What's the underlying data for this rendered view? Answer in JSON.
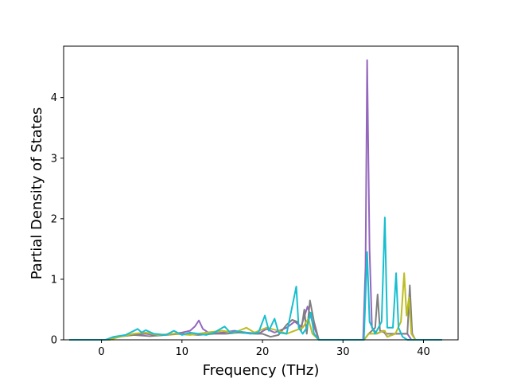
{
  "chart_data": {
    "type": "line",
    "title": "",
    "xlabel": "Frequency (THz)",
    "ylabel": "Partial Density of States",
    "xlim": [
      -4.7,
      44.3
    ],
    "ylim": [
      0,
      4.85
    ],
    "xticks": [
      0,
      10,
      20,
      30,
      40
    ],
    "yticks": [
      0,
      1,
      2,
      3,
      4
    ],
    "grid": false,
    "legend": "none",
    "series": [
      {
        "color": "#9467bd",
        "points": [
          [
            -4.0,
            0
          ],
          [
            0.5,
            0
          ],
          [
            1.2,
            0.03
          ],
          [
            2.5,
            0.06
          ],
          [
            4,
            0.08
          ],
          [
            5.5,
            0.1
          ],
          [
            7,
            0.07
          ],
          [
            8.5,
            0.09
          ],
          [
            10,
            0.12
          ],
          [
            11,
            0.15
          ],
          [
            11.6,
            0.22
          ],
          [
            12.1,
            0.32
          ],
          [
            12.6,
            0.18
          ],
          [
            13.5,
            0.1
          ],
          [
            15,
            0.12
          ],
          [
            16.5,
            0.15
          ],
          [
            18,
            0.12
          ],
          [
            19.5,
            0.1
          ],
          [
            20.5,
            0.18
          ],
          [
            21.5,
            0.12
          ],
          [
            23,
            0.2
          ],
          [
            24,
            0.3
          ],
          [
            24.8,
            0.22
          ],
          [
            25.6,
            0.55
          ],
          [
            26.2,
            0.3
          ],
          [
            27,
            0
          ],
          [
            32.5,
            0
          ],
          [
            32.8,
            1.2
          ],
          [
            33.0,
            4.62
          ],
          [
            33.3,
            1.5
          ],
          [
            33.6,
            0.2
          ],
          [
            34.2,
            0.1
          ],
          [
            35.0,
            0.15
          ],
          [
            35.5,
            0.05
          ],
          [
            36.5,
            0.1
          ],
          [
            38,
            0.1
          ],
          [
            38.5,
            0
          ],
          [
            42.3,
            0
          ]
        ]
      },
      {
        "color": "#7f7f7f",
        "points": [
          [
            -4.0,
            0
          ],
          [
            1,
            0
          ],
          [
            2,
            0.05
          ],
          [
            4,
            0.08
          ],
          [
            6,
            0.06
          ],
          [
            8,
            0.08
          ],
          [
            10,
            0.1
          ],
          [
            12,
            0.08
          ],
          [
            14,
            0.1
          ],
          [
            15.5,
            0.1
          ],
          [
            17,
            0.12
          ],
          [
            19,
            0.1
          ],
          [
            20,
            0.1
          ],
          [
            21,
            0.05
          ],
          [
            22,
            0.08
          ],
          [
            23,
            0.25
          ],
          [
            23.7,
            0.33
          ],
          [
            24.3,
            0.3
          ],
          [
            24.8,
            0.15
          ],
          [
            25.2,
            0.5
          ],
          [
            25.5,
            0.1
          ],
          [
            25.9,
            0.65
          ],
          [
            26.4,
            0.3
          ],
          [
            27,
            0
          ],
          [
            32.6,
            0
          ],
          [
            33.2,
            0.1
          ],
          [
            34,
            0.2
          ],
          [
            34.3,
            0.75
          ],
          [
            34.6,
            0.15
          ],
          [
            35.5,
            0.1
          ],
          [
            36.8,
            0.1
          ],
          [
            38.0,
            0.1
          ],
          [
            38.3,
            0.9
          ],
          [
            38.6,
            0.1
          ],
          [
            39,
            0
          ],
          [
            42.3,
            0
          ]
        ]
      },
      {
        "color": "#bcbd22",
        "points": [
          [
            -4.0,
            0
          ],
          [
            1,
            0
          ],
          [
            2,
            0.04
          ],
          [
            4,
            0.1
          ],
          [
            5.5,
            0.12
          ],
          [
            7,
            0.08
          ],
          [
            9,
            0.1
          ],
          [
            11,
            0.08
          ],
          [
            13,
            0.12
          ],
          [
            15,
            0.15
          ],
          [
            16.5,
            0.12
          ],
          [
            18,
            0.2
          ],
          [
            19,
            0.12
          ],
          [
            20.5,
            0.2
          ],
          [
            22,
            0.15
          ],
          [
            23,
            0.1
          ],
          [
            24,
            0.15
          ],
          [
            25,
            0.2
          ],
          [
            25.7,
            0.35
          ],
          [
            26.2,
            0.1
          ],
          [
            27,
            0
          ],
          [
            32.6,
            0
          ],
          [
            33.2,
            0.1
          ],
          [
            34,
            0.1
          ],
          [
            35.2,
            0.15
          ],
          [
            35.5,
            0.05
          ],
          [
            36.5,
            0.1
          ],
          [
            37.2,
            0.3
          ],
          [
            37.6,
            1.1
          ],
          [
            37.9,
            0.4
          ],
          [
            38.2,
            0.7
          ],
          [
            38.5,
            0.1
          ],
          [
            39,
            0
          ],
          [
            42.3,
            0
          ]
        ]
      },
      {
        "color": "#17becf",
        "points": [
          [
            -4.0,
            0
          ],
          [
            0.5,
            0
          ],
          [
            1.5,
            0.05
          ],
          [
            3,
            0.08
          ],
          [
            4.5,
            0.18
          ],
          [
            5,
            0.12
          ],
          [
            5.5,
            0.16
          ],
          [
            6.5,
            0.1
          ],
          [
            8,
            0.08
          ],
          [
            9,
            0.15
          ],
          [
            10,
            0.08
          ],
          [
            11,
            0.12
          ],
          [
            12,
            0.1
          ],
          [
            13,
            0.08
          ],
          [
            14,
            0.12
          ],
          [
            15.3,
            0.22
          ],
          [
            16,
            0.12
          ],
          [
            17,
            0.14
          ],
          [
            18.5,
            0.1
          ],
          [
            19.5,
            0.12
          ],
          [
            20.3,
            0.4
          ],
          [
            20.8,
            0.15
          ],
          [
            21.5,
            0.35
          ],
          [
            22,
            0.12
          ],
          [
            23,
            0.1
          ],
          [
            24.2,
            0.88
          ],
          [
            24.5,
            0.2
          ],
          [
            25,
            0.1
          ],
          [
            25.5,
            0.2
          ],
          [
            26,
            0.45
          ],
          [
            26.4,
            0.1
          ],
          [
            27,
            0
          ],
          [
            32.6,
            0
          ],
          [
            33.0,
            1.45
          ],
          [
            33.3,
            0.3
          ],
          [
            34,
            0.1
          ],
          [
            34.8,
            0.3
          ],
          [
            35.2,
            2.02
          ],
          [
            35.5,
            0.2
          ],
          [
            36.2,
            0.2
          ],
          [
            36.6,
            1.1
          ],
          [
            36.9,
            0.2
          ],
          [
            37.4,
            0.05
          ],
          [
            38,
            0
          ],
          [
            42.3,
            0
          ]
        ]
      }
    ]
  }
}
